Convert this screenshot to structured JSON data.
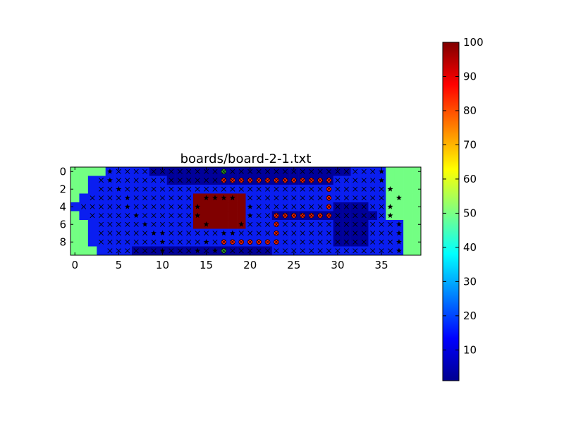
{
  "chart_data": {
    "type": "heatmap",
    "title": "boards/board-2-1.txt",
    "xlabel": "",
    "ylabel": "",
    "grid_cols": 40,
    "grid_rows": 10,
    "xlim": [
      -0.5,
      39.5
    ],
    "ylim": [
      9.5,
      -0.5
    ],
    "x_ticks": [
      0,
      5,
      10,
      15,
      20,
      25,
      30,
      35
    ],
    "y_ticks": [
      0,
      2,
      4,
      6,
      8
    ],
    "colormap": "jet",
    "color_range": [
      1,
      100
    ],
    "colorbar_ticks": [
      10,
      20,
      30,
      40,
      50,
      60,
      70,
      80,
      90,
      100
    ],
    "colors": {
      "edge_green": "#73ff83",
      "region_blue": "#0a1ef0",
      "region_dark": "#00009a",
      "obstacle": "#800000",
      "path_marker": "#ff2000",
      "endpoint_marker": "#2ca02c"
    },
    "regions": [
      {
        "value": 55,
        "cells": "left and right borders"
      },
      {
        "value": 100,
        "rows": [
          3,
          6
        ],
        "cols": [
          14,
          19
        ]
      },
      {
        "value": 1,
        "description": "dark channel along top, bottom and right"
      },
      {
        "value": 12,
        "description": "interior"
      }
    ],
    "markers": {
      "cross": "visited cells",
      "star": "boundary cells",
      "path_circle": "solution path",
      "endpoints": [
        [
          17,
          0
        ],
        [
          17,
          9
        ]
      ]
    }
  }
}
